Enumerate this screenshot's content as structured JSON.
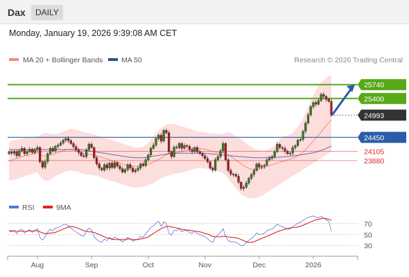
{
  "header": {
    "title": "Dax",
    "timeframe_tab": "DAILY"
  },
  "timestamp": "Monday, January 19, 2026 9:39:08 AM CET",
  "legend": {
    "items": [
      {
        "label": "MA 20 + Bollinger Bands",
        "color": "#f28b82"
      },
      {
        "label": "MA 50",
        "color": "#2f4f8f"
      }
    ],
    "credit": "Research © 2026 Trading Central"
  },
  "rsi_legend": {
    "items": [
      {
        "label": "RSI",
        "color": "#4f7bd9"
      },
      {
        "label": "9MA",
        "color": "#e02020"
      }
    ]
  },
  "chart_data": [
    {
      "type": "candlestick",
      "x_tick_labels": [
        "Aug",
        "Sep",
        "Oct",
        "Nov",
        "Dec",
        "2026"
      ],
      "ylim": [
        23100,
        26150
      ],
      "levels": [
        {
          "value": 25740,
          "label": "25740",
          "color": "#58a81a",
          "style": "solid-line"
        },
        {
          "value": 25400,
          "label": "25400",
          "color": "#58a81a",
          "style": "solid-line"
        },
        {
          "value": 24993,
          "label": "24993",
          "color": "#333333",
          "style": "dotted-current-price"
        },
        {
          "value": 24450,
          "label": "24450",
          "color": "#2a5caa",
          "style": "solid-line"
        },
        {
          "value": 24105,
          "label": "24105",
          "color": "#d62728",
          "style": "thin-line"
        },
        {
          "value": 23880,
          "label": "23880",
          "color": "#d62728",
          "style": "thin-line"
        }
      ],
      "projection": {
        "from": 24993,
        "to": 25740,
        "color": "#2a5caa"
      },
      "close": [
        24090,
        24060,
        24100,
        24000,
        24120,
        24180,
        24050,
        24100,
        24160,
        24080,
        24150,
        24200,
        23850,
        23720,
        23860,
        24050,
        24180,
        24120,
        24230,
        24260,
        24310,
        24380,
        24420,
        24370,
        24300,
        24220,
        24150,
        24080,
        24000,
        23980,
        24150,
        24280,
        24200,
        23950,
        23800,
        23700,
        23650,
        23780,
        23700,
        23820,
        23710,
        23830,
        23750,
        23680,
        23600,
        23660,
        23780,
        23700,
        23610,
        23650,
        23700,
        23800,
        23760,
        23900,
        24020,
        24180,
        24260,
        24420,
        24500,
        24360,
        24620,
        24560,
        24100,
        23980,
        24210,
        24200,
        24300,
        24180,
        24250,
        24230,
        24150,
        24100,
        24200,
        24100,
        24060,
        24000,
        23930,
        23850,
        23700,
        23650,
        23900,
        23980,
        24120,
        24300,
        23900,
        23640,
        23550,
        23540,
        23500,
        23350,
        23200,
        23230,
        23330,
        23450,
        23540,
        23640,
        23800,
        23720,
        23740,
        23770,
        23900,
        23940,
        23980,
        24100,
        24280,
        24200,
        24180,
        24110,
        24050,
        24060,
        24200,
        24250,
        24380,
        24400,
        24600,
        24800,
        25000,
        25200,
        25300,
        25260,
        25350,
        25500,
        25450,
        25380,
        25330,
        24993
      ],
      "sma20": [
        23880,
        23890,
        23920,
        23930,
        23950,
        23980,
        24000,
        24010,
        24020,
        24040,
        24060,
        24080,
        24040,
        24000,
        23990,
        24000,
        24020,
        24030,
        24050,
        24080,
        24100,
        24120,
        24140,
        24150,
        24160,
        24140,
        24120,
        24100,
        24080,
        24060,
        24040,
        24040,
        24030,
        24020,
        24000,
        23980,
        23960,
        23940,
        23920,
        23900,
        23880,
        23860,
        23840,
        23820,
        23800,
        23780,
        23770,
        23760,
        23750,
        23740,
        23740,
        23750,
        23760,
        23770,
        23790,
        23820,
        23850,
        23880,
        23910,
        23940,
        23980,
        24020,
        24040,
        24050,
        24060,
        24080,
        24090,
        24100,
        24120,
        24140,
        24160,
        24170,
        24180,
        24190,
        24180,
        24170,
        24160,
        24150,
        24120,
        24100,
        24090,
        24080,
        24070,
        24080,
        24060,
        24020,
        23980,
        23940,
        23900,
        23850,
        23800,
        23760,
        23720,
        23690,
        23670,
        23660,
        23660,
        23670,
        23690,
        23710,
        23740,
        23760,
        23780,
        23800,
        23820,
        23840,
        23860,
        23880,
        23900,
        23920,
        23940,
        23960,
        24000,
        24040,
        24090,
        24150,
        24220,
        24290,
        24360,
        24430,
        24500,
        24580,
        24660,
        24740,
        24810,
        24880
      ],
      "bb_upper": [
        24350,
        24360,
        24380,
        24390,
        24400,
        24420,
        24430,
        24440,
        24440,
        24450,
        24460,
        24470,
        24500,
        24540,
        24550,
        24550,
        24540,
        24530,
        24530,
        24540,
        24560,
        24590,
        24620,
        24650,
        24660,
        24650,
        24640,
        24620,
        24600,
        24580,
        24560,
        24550,
        24540,
        24520,
        24500,
        24480,
        24460,
        24440,
        24420,
        24400,
        24380,
        24360,
        24340,
        24320,
        24300,
        24280,
        24260,
        24240,
        24220,
        24200,
        24190,
        24200,
        24220,
        24260,
        24320,
        24400,
        24480,
        24560,
        24620,
        24680,
        24720,
        24760,
        24780,
        24780,
        24770,
        24760,
        24740,
        24720,
        24700,
        24680,
        24660,
        24640,
        24620,
        24600,
        24590,
        24580,
        24570,
        24560,
        24550,
        24550,
        24540,
        24530,
        24530,
        24540,
        24560,
        24580,
        24560,
        24520,
        24480,
        24440,
        24400,
        24350,
        24300,
        24260,
        24220,
        24180,
        24150,
        24140,
        24130,
        24130,
        24140,
        24160,
        24200,
        24250,
        24320,
        24400,
        24450,
        24480,
        24500,
        24520,
        24560,
        24620,
        24700,
        24800,
        24920,
        25050,
        25200,
        25350,
        25480,
        25600,
        25700,
        25780,
        25850,
        25900,
        25950,
        25980
      ],
      "bb_lower": [
        23400,
        23400,
        23420,
        23430,
        23450,
        23470,
        23500,
        23520,
        23540,
        23560,
        23580,
        23600,
        23500,
        23420,
        23390,
        23390,
        23420,
        23460,
        23500,
        23530,
        23560,
        23590,
        23620,
        23630,
        23640,
        23630,
        23620,
        23600,
        23580,
        23560,
        23540,
        23540,
        23530,
        23520,
        23500,
        23480,
        23460,
        23440,
        23420,
        23400,
        23380,
        23360,
        23340,
        23320,
        23300,
        23280,
        23260,
        23240,
        23230,
        23220,
        23220,
        23230,
        23240,
        23260,
        23280,
        23300,
        23330,
        23370,
        23410,
        23450,
        23480,
        23500,
        23520,
        23540,
        23560,
        23570,
        23580,
        23590,
        23600,
        23620,
        23640,
        23660,
        23680,
        23700,
        23700,
        23700,
        23690,
        23680,
        23670,
        23660,
        23640,
        23620,
        23600,
        23580,
        23520,
        23440,
        23360,
        23280,
        23200,
        23120,
        23060,
        23020,
        22990,
        22970,
        22960,
        22960,
        22970,
        22990,
        23020,
        23060,
        23100,
        23140,
        23180,
        23220,
        23260,
        23300,
        23340,
        23380,
        23420,
        23460,
        23500,
        23540,
        23580,
        23620,
        23660,
        23700,
        23740,
        23780,
        23820,
        23860,
        23900,
        23940,
        23980,
        24020,
        24060,
        24100
      ],
      "sma50": [
        24150,
        24150,
        24150,
        24150,
        24150,
        24150,
        24150,
        24150,
        24150,
        24150,
        24150,
        24150,
        24150,
        24150,
        24150,
        24150,
        24150,
        24150,
        24150,
        24150,
        24150,
        24150,
        24150,
        24150,
        24150,
        24150,
        24150,
        24150,
        24150,
        24140,
        24130,
        24120,
        24110,
        24100,
        24090,
        24080,
        24070,
        24060,
        24050,
        24040,
        24030,
        24020,
        24010,
        24000,
        23990,
        23980,
        23970,
        23960,
        23960,
        23950,
        23950,
        23950,
        23950,
        23960,
        23970,
        23980,
        23990,
        24000,
        24010,
        24020,
        24030,
        24040,
        24050,
        24060,
        24060,
        24060,
        24060,
        24060,
        24060,
        24060,
        24060,
        24060,
        24060,
        24060,
        24060,
        24060,
        24060,
        24050,
        24050,
        24040,
        24040,
        24030,
        24030,
        24020,
        24010,
        24000,
        24000,
        23990,
        23990,
        23980,
        23980,
        23970,
        23970,
        23960,
        23960,
        23950,
        23950,
        23950,
        23950,
        23950,
        23960,
        23960,
        23960,
        23960,
        23960,
        23970,
        23970,
        23980,
        23980,
        23990,
        24000,
        24000,
        24010,
        24020,
        24030,
        24040,
        24050,
        24060,
        24070,
        24090,
        24110,
        24130,
        24150,
        24180,
        24210,
        24240
      ]
    },
    {
      "type": "line",
      "name": "RSI",
      "x_tick_labels": [
        "Aug",
        "Sep",
        "Oct",
        "Nov",
        "Dec",
        "2026"
      ],
      "y_tick_labels": [
        70,
        50,
        30
      ],
      "ylim": [
        17,
        85
      ],
      "series": [
        {
          "name": "RSI",
          "color": "#4f7bd9",
          "values": [
            56,
            55,
            57,
            52,
            58,
            60,
            53,
            56,
            59,
            54,
            58,
            61,
            45,
            40,
            46,
            55,
            60,
            57,
            62,
            63,
            65,
            68,
            69,
            66,
            62,
            58,
            55,
            52,
            48,
            47,
            56,
            62,
            58,
            46,
            41,
            38,
            36,
            42,
            39,
            45,
            40,
            46,
            43,
            40,
            37,
            40,
            45,
            42,
            38,
            40,
            42,
            47,
            45,
            52,
            57,
            63,
            66,
            71,
            74,
            65,
            73,
            70,
            53,
            49,
            58,
            57,
            61,
            55,
            58,
            57,
            54,
            52,
            56,
            52,
            50,
            48,
            46,
            43,
            38,
            36,
            46,
            49,
            54,
            61,
            47,
            39,
            37,
            37,
            36,
            33,
            30,
            31,
            35,
            40,
            43,
            47,
            53,
            50,
            51,
            52,
            57,
            59,
            60,
            64,
            69,
            66,
            65,
            62,
            60,
            60,
            65,
            67,
            71,
            72,
            76,
            79,
            81,
            83,
            84,
            82,
            81,
            83,
            80,
            77,
            74,
            56
          ]
        },
        {
          "name": "9MA",
          "color": "#e02020",
          "values": [
            57,
            57,
            57,
            56,
            56,
            56,
            56,
            56,
            57,
            56,
            57,
            57,
            55,
            53,
            52,
            52,
            53,
            53,
            54,
            56,
            58,
            60,
            62,
            64,
            65,
            64,
            63,
            61,
            59,
            57,
            56,
            55,
            55,
            54,
            52,
            50,
            48,
            46,
            44,
            43,
            42,
            41,
            41,
            41,
            41,
            41,
            42,
            42,
            41,
            41,
            41,
            42,
            43,
            44,
            46,
            49,
            52,
            55,
            58,
            61,
            63,
            65,
            65,
            64,
            63,
            62,
            61,
            60,
            59,
            58,
            58,
            57,
            56,
            56,
            55,
            54,
            52,
            51,
            49,
            47,
            46,
            46,
            46,
            47,
            47,
            46,
            45,
            45,
            44,
            43,
            41,
            39,
            37,
            36,
            36,
            37,
            39,
            41,
            43,
            45,
            47,
            49,
            51,
            53,
            55,
            57,
            58,
            60,
            61,
            62,
            63,
            63,
            64,
            65,
            67,
            69,
            71,
            73,
            75,
            77,
            78,
            79,
            80,
            79,
            78,
            76
          ]
        }
      ],
      "grid": "dotted at 70, 50, 30"
    }
  ]
}
